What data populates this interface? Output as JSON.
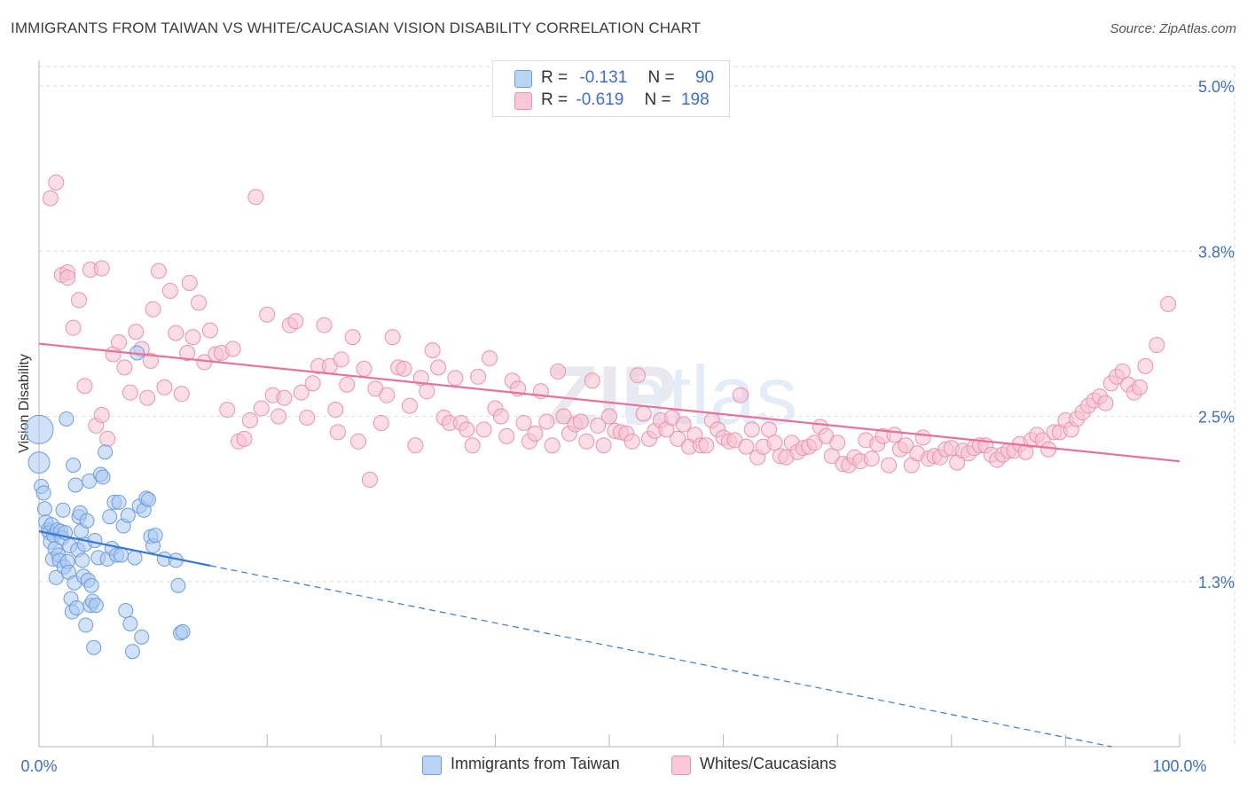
{
  "header": {
    "title": "IMMIGRANTS FROM TAIWAN VS WHITE/CAUCASIAN VISION DISABILITY CORRELATION CHART",
    "source": "Source: ZipAtlas.com"
  },
  "legend_top": {
    "row1": {
      "r_label": "R =",
      "r_value": "-0.131",
      "n_label": "N =",
      "n_value": "90"
    },
    "row2": {
      "r_label": "R =",
      "r_value": "-0.619",
      "n_label": "N =",
      "n_value": "198"
    }
  },
  "legend_bottom": {
    "series1": "Immigrants from Taiwan",
    "series2": "Whites/Caucasians"
  },
  "colors": {
    "blue_fill": "#a9c8f2",
    "blue_stroke": "#6b9de0",
    "blue_line": "#3a78d4",
    "pink_fill": "#f7c1d1",
    "pink_stroke": "#ea93ae",
    "pink_line": "#e8709a",
    "tick_label": "#3d6fc7",
    "grid": "#dedede"
  },
  "chart_data": {
    "type": "scatter",
    "title": "IMMIGRANTS FROM TAIWAN VS WHITE/CAUCASIAN VISION DISABILITY CORRELATION CHART",
    "xlabel": "",
    "ylabel": "Vision Disability",
    "x_tick_labels": [
      "0.0%",
      "100.0%"
    ],
    "y_tick_labels": [
      "1.3%",
      "2.5%",
      "3.8%",
      "5.0%"
    ],
    "xlim": [
      0,
      100
    ],
    "ylim": [
      0,
      5.2
    ],
    "y_ticks": [
      1.25,
      2.5,
      3.75,
      5.0
    ],
    "legend_position": "top-center",
    "grid": true,
    "watermark": "ZIPatlas",
    "series": [
      {
        "name": "Immigrants from Taiwan",
        "r": -0.131,
        "n": 90,
        "trend": {
          "x0": 0,
          "y0": 1.63,
          "x1": 15,
          "y1": 1.37,
          "dashed_to_x": 100
        },
        "points": [
          [
            0,
            2.4
          ],
          [
            0,
            2.15
          ],
          [
            0.2,
            1.97
          ],
          [
            0.4,
            1.92
          ],
          [
            0.5,
            1.8
          ],
          [
            0.6,
            1.7
          ],
          [
            0.8,
            1.64
          ],
          [
            0.9,
            1.62
          ],
          [
            1.0,
            1.55
          ],
          [
            1.1,
            1.68
          ],
          [
            1.2,
            1.42
          ],
          [
            1.3,
            1.6
          ],
          [
            1.4,
            1.5
          ],
          [
            1.5,
            1.28
          ],
          [
            1.6,
            1.64
          ],
          [
            1.7,
            1.45
          ],
          [
            1.8,
            1.41
          ],
          [
            1.9,
            1.63
          ],
          [
            2.0,
            1.58
          ],
          [
            2.1,
            1.79
          ],
          [
            2.2,
            1.36
          ],
          [
            2.3,
            1.62
          ],
          [
            2.4,
            2.48
          ],
          [
            2.5,
            1.4
          ],
          [
            2.6,
            1.32
          ],
          [
            2.7,
            1.52
          ],
          [
            2.8,
            1.12
          ],
          [
            2.9,
            1.02
          ],
          [
            3.0,
            2.13
          ],
          [
            3.1,
            1.24
          ],
          [
            3.2,
            1.98
          ],
          [
            3.3,
            1.05
          ],
          [
            3.4,
            1.49
          ],
          [
            3.5,
            1.74
          ],
          [
            3.6,
            1.77
          ],
          [
            3.7,
            1.63
          ],
          [
            3.8,
            1.41
          ],
          [
            3.9,
            1.29
          ],
          [
            4.0,
            1.53
          ],
          [
            4.1,
            0.92
          ],
          [
            4.2,
            1.71
          ],
          [
            4.3,
            1.26
          ],
          [
            4.4,
            2.01
          ],
          [
            4.5,
            1.07
          ],
          [
            4.6,
            1.22
          ],
          [
            4.7,
            1.1
          ],
          [
            4.8,
            0.75
          ],
          [
            4.9,
            1.56
          ],
          [
            5.0,
            1.07
          ],
          [
            5.2,
            1.43
          ],
          [
            5.4,
            2.06
          ],
          [
            5.6,
            2.04
          ],
          [
            5.8,
            2.23
          ],
          [
            6.0,
            1.42
          ],
          [
            6.2,
            1.74
          ],
          [
            6.4,
            1.5
          ],
          [
            6.6,
            1.85
          ],
          [
            6.8,
            1.45
          ],
          [
            7.0,
            1.85
          ],
          [
            7.2,
            1.45
          ],
          [
            7.4,
            1.67
          ],
          [
            7.6,
            1.03
          ],
          [
            7.8,
            1.75
          ],
          [
            8.0,
            0.93
          ],
          [
            8.2,
            0.72
          ],
          [
            8.4,
            1.43
          ],
          [
            8.6,
            2.98
          ],
          [
            8.8,
            1.82
          ],
          [
            9.0,
            0.83
          ],
          [
            9.2,
            1.79
          ],
          [
            9.4,
            1.88
          ],
          [
            9.6,
            1.87
          ],
          [
            9.8,
            1.59
          ],
          [
            10.0,
            1.52
          ],
          [
            10.2,
            1.6
          ],
          [
            11.0,
            1.42
          ],
          [
            12.0,
            1.41
          ],
          [
            12.2,
            1.22
          ],
          [
            12.4,
            0.86
          ],
          [
            12.6,
            0.87
          ]
        ]
      },
      {
        "name": "Whites/Caucasians",
        "r": -0.619,
        "n": 198,
        "trend": {
          "x0": 0,
          "y0": 3.05,
          "x1": 100,
          "y1": 2.16
        },
        "points": [
          [
            1,
            4.15
          ],
          [
            1.5,
            4.27
          ],
          [
            2,
            3.57
          ],
          [
            2.5,
            3.59
          ],
          [
            3,
            3.17
          ],
          [
            3.5,
            3.38
          ],
          [
            4,
            2.73
          ],
          [
            4.5,
            3.61
          ],
          [
            5,
            2.43
          ],
          [
            5.5,
            2.51
          ],
          [
            6,
            2.33
          ],
          [
            6.5,
            2.97
          ],
          [
            7,
            3.06
          ],
          [
            7.5,
            2.87
          ],
          [
            8,
            2.68
          ],
          [
            8.5,
            3.14
          ],
          [
            9,
            3.01
          ],
          [
            9.5,
            2.64
          ],
          [
            10,
            3.31
          ],
          [
            10.5,
            3.6
          ],
          [
            11,
            2.72
          ],
          [
            11.5,
            3.45
          ],
          [
            12,
            3.13
          ],
          [
            12.5,
            2.67
          ],
          [
            13,
            2.98
          ],
          [
            13.5,
            3.1
          ],
          [
            14,
            3.36
          ],
          [
            14.5,
            2.91
          ],
          [
            15,
            3.15
          ],
          [
            15.5,
            2.97
          ],
          [
            16,
            2.98
          ],
          [
            16.5,
            2.55
          ],
          [
            17,
            3.01
          ],
          [
            17.5,
            2.31
          ],
          [
            18,
            2.33
          ],
          [
            18.5,
            2.47
          ],
          [
            19,
            4.16
          ],
          [
            19.5,
            2.56
          ],
          [
            20,
            3.27
          ],
          [
            20.5,
            2.66
          ],
          [
            21,
            2.5
          ],
          [
            21.5,
            2.64
          ],
          [
            22,
            3.19
          ],
          [
            22.5,
            3.22
          ],
          [
            23,
            2.68
          ],
          [
            23.5,
            2.49
          ],
          [
            24,
            2.75
          ],
          [
            24.5,
            2.88
          ],
          [
            25,
            3.19
          ],
          [
            25.5,
            2.88
          ],
          [
            26,
            2.55
          ],
          [
            26.5,
            2.93
          ],
          [
            27,
            2.74
          ],
          [
            27.5,
            3.1
          ],
          [
            28,
            2.31
          ],
          [
            28.5,
            2.86
          ],
          [
            29,
            2.02
          ],
          [
            29.5,
            2.71
          ],
          [
            30,
            2.45
          ],
          [
            30.5,
            2.66
          ],
          [
            31,
            3.1
          ],
          [
            31.5,
            2.87
          ],
          [
            32,
            2.86
          ],
          [
            32.5,
            2.58
          ],
          [
            33,
            2.28
          ],
          [
            33.5,
            2.79
          ],
          [
            34,
            2.69
          ],
          [
            34.5,
            3.0
          ],
          [
            35,
            2.87
          ],
          [
            35.5,
            2.49
          ],
          [
            36,
            2.45
          ],
          [
            36.5,
            2.79
          ],
          [
            37,
            2.45
          ],
          [
            37.5,
            2.4
          ],
          [
            38,
            2.28
          ],
          [
            38.5,
            2.8
          ],
          [
            39,
            2.4
          ],
          [
            39.5,
            2.94
          ],
          [
            40,
            2.56
          ],
          [
            40.5,
            2.5
          ],
          [
            41,
            2.35
          ],
          [
            41.5,
            2.77
          ],
          [
            42,
            2.71
          ],
          [
            42.5,
            2.45
          ],
          [
            43,
            2.31
          ],
          [
            43.5,
            2.37
          ],
          [
            44,
            2.69
          ],
          [
            44.5,
            2.46
          ],
          [
            45,
            2.28
          ],
          [
            45.5,
            2.84
          ],
          [
            46,
            2.5
          ],
          [
            46.5,
            2.37
          ],
          [
            47,
            2.44
          ],
          [
            47.5,
            2.46
          ],
          [
            48,
            2.31
          ],
          [
            48.5,
            2.77
          ],
          [
            49,
            2.43
          ],
          [
            49.5,
            2.28
          ],
          [
            50,
            2.5
          ],
          [
            50.5,
            2.39
          ],
          [
            51,
            2.38
          ],
          [
            51.5,
            2.37
          ],
          [
            52,
            2.31
          ],
          [
            52.5,
            2.81
          ],
          [
            53,
            2.52
          ],
          [
            53.5,
            2.33
          ],
          [
            54,
            2.39
          ],
          [
            54.5,
            2.47
          ],
          [
            55,
            2.4
          ],
          [
            55.5,
            2.49
          ],
          [
            56,
            2.33
          ],
          [
            56.5,
            2.44
          ],
          [
            57,
            2.27
          ],
          [
            57.5,
            2.36
          ],
          [
            58,
            2.28
          ],
          [
            58.5,
            2.28
          ],
          [
            59,
            2.47
          ],
          [
            59.5,
            2.4
          ],
          [
            60,
            2.34
          ],
          [
            60.5,
            2.31
          ],
          [
            61,
            2.32
          ],
          [
            61.5,
            2.66
          ],
          [
            62,
            2.27
          ],
          [
            62.5,
            2.4
          ],
          [
            63,
            2.19
          ],
          [
            63.5,
            2.27
          ],
          [
            64,
            2.4
          ],
          [
            64.5,
            2.3
          ],
          [
            65,
            2.2
          ],
          [
            65.5,
            2.19
          ],
          [
            66,
            2.3
          ],
          [
            66.5,
            2.23
          ],
          [
            67,
            2.26
          ],
          [
            67.5,
            2.27
          ],
          [
            68,
            2.3
          ],
          [
            68.5,
            2.42
          ],
          [
            69,
            2.35
          ],
          [
            69.5,
            2.2
          ],
          [
            70,
            2.3
          ],
          [
            70.5,
            2.14
          ],
          [
            71,
            2.13
          ],
          [
            71.5,
            2.19
          ],
          [
            72,
            2.16
          ],
          [
            72.5,
            2.32
          ],
          [
            73,
            2.18
          ],
          [
            73.5,
            2.29
          ],
          [
            74,
            2.35
          ],
          [
            74.5,
            2.13
          ],
          [
            75,
            2.36
          ],
          [
            75.5,
            2.25
          ],
          [
            76,
            2.28
          ],
          [
            76.5,
            2.13
          ],
          [
            77,
            2.22
          ],
          [
            77.5,
            2.34
          ],
          [
            78,
            2.18
          ],
          [
            78.5,
            2.2
          ],
          [
            79,
            2.19
          ],
          [
            79.5,
            2.25
          ],
          [
            80,
            2.26
          ],
          [
            80.5,
            2.15
          ],
          [
            81,
            2.24
          ],
          [
            81.5,
            2.22
          ],
          [
            82,
            2.26
          ],
          [
            82.5,
            2.28
          ],
          [
            83,
            2.28
          ],
          [
            83.5,
            2.21
          ],
          [
            84,
            2.17
          ],
          [
            84.5,
            2.21
          ],
          [
            85,
            2.24
          ],
          [
            85.5,
            2.24
          ],
          [
            86,
            2.29
          ],
          [
            86.5,
            2.23
          ],
          [
            87,
            2.32
          ],
          [
            87.5,
            2.36
          ],
          [
            88,
            2.32
          ],
          [
            88.5,
            2.25
          ],
          [
            89,
            2.38
          ],
          [
            89.5,
            2.38
          ],
          [
            90,
            2.47
          ],
          [
            90.5,
            2.4
          ],
          [
            91,
            2.48
          ],
          [
            91.5,
            2.53
          ],
          [
            92,
            2.58
          ],
          [
            92.5,
            2.62
          ],
          [
            93,
            2.65
          ],
          [
            93.5,
            2.6
          ],
          [
            94,
            2.75
          ],
          [
            94.5,
            2.8
          ],
          [
            95,
            2.84
          ],
          [
            95.5,
            2.74
          ],
          [
            96,
            2.68
          ],
          [
            96.5,
            2.72
          ],
          [
            97,
            2.88
          ],
          [
            98,
            3.04
          ],
          [
            99,
            3.35
          ],
          [
            2.5,
            3.55
          ],
          [
            5.5,
            3.62
          ],
          [
            9.8,
            2.92
          ],
          [
            13.2,
            3.51
          ],
          [
            26.2,
            2.38
          ]
        ]
      }
    ]
  }
}
